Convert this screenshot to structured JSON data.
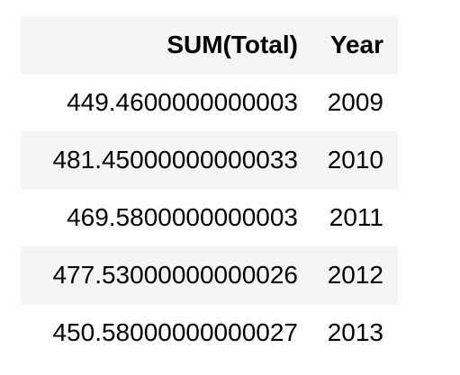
{
  "table": {
    "columns": [
      "SUM(Total)",
      "Year"
    ],
    "rows": [
      {
        "total": "449.4600000000003",
        "year": "2009"
      },
      {
        "total": "481.45000000000033",
        "year": "2010"
      },
      {
        "total": "469.5800000000003",
        "year": "2011"
      },
      {
        "total": "477.53000000000026",
        "year": "2012"
      },
      {
        "total": "450.58000000000027",
        "year": "2013"
      }
    ]
  },
  "colors": {
    "header_bg": "#f5f5f5",
    "stripe_bg": "#f5f5f5",
    "text": "#000000"
  }
}
